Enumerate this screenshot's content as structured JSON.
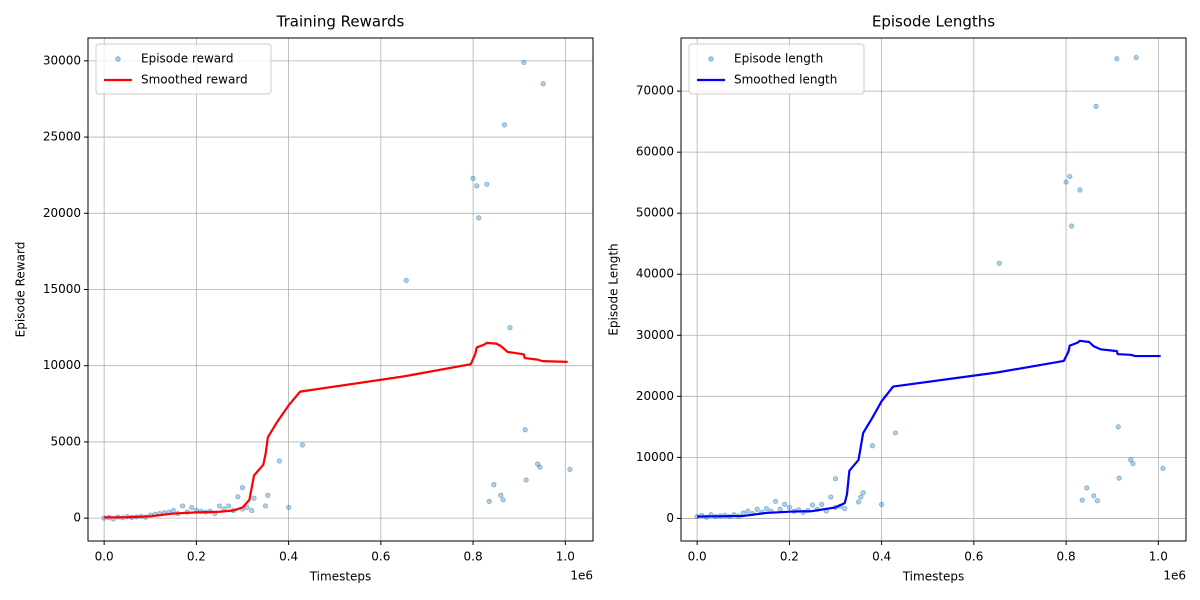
{
  "chart_data": [
    {
      "type": "scatter",
      "title": "Training Rewards",
      "x_label": "Timesteps",
      "y_label": "Episode Reward",
      "x_offset_label": "1e6",
      "xlim": [
        -0.035,
        1.06
      ],
      "ylim": [
        -1500,
        31500
      ],
      "xticks": [
        {
          "value": 0,
          "label": "0.0"
        },
        0.2,
        0.4,
        0.6,
        0.8,
        {
          "value": 1,
          "label": "1.0"
        }
      ],
      "yticks": [
        0,
        5000,
        10000,
        15000,
        20000,
        25000,
        30000
      ],
      "grid": true,
      "legend": "upper-left",
      "series": [
        {
          "name": "Episode reward",
          "type": "scatter",
          "color": "#1f77b4",
          "x": [
            0.0,
            0.01,
            0.02,
            0.03,
            0.04,
            0.05,
            0.06,
            0.07,
            0.08,
            0.09,
            0.1,
            0.11,
            0.12,
            0.13,
            0.14,
            0.15,
            0.16,
            0.17,
            0.18,
            0.19,
            0.2,
            0.21,
            0.22,
            0.23,
            0.24,
            0.25,
            0.26,
            0.27,
            0.28,
            0.3,
            0.31,
            0.32,
            0.29,
            0.3,
            0.325,
            0.35,
            0.355,
            0.38,
            0.4,
            0.43,
            0.655,
            0.8,
            0.808,
            0.812,
            0.83,
            0.835,
            0.845,
            0.86,
            0.865,
            0.868,
            0.88,
            0.91,
            0.913,
            0.915,
            0.94,
            0.945,
            0.952,
            1.01
          ],
          "values": [
            0,
            50,
            -50,
            80,
            20,
            100,
            50,
            80,
            120,
            60,
            200,
            250,
            300,
            350,
            400,
            500,
            300,
            800,
            400,
            700,
            500,
            450,
            400,
            450,
            300,
            800,
            600,
            800,
            500,
            600,
            700,
            500,
            1400,
            2000,
            1300,
            800,
            1500,
            3750,
            700,
            4800,
            15600,
            22300,
            21800,
            19700,
            21900,
            1100,
            2200,
            1500,
            1200,
            25800,
            12500,
            29900,
            5800,
            2500,
            3550,
            3350,
            28500,
            3200
          ]
        },
        {
          "name": "Smoothed reward",
          "type": "line",
          "color": "#ff0000",
          "x": [
            0,
            0.05,
            0.1,
            0.15,
            0.2,
            0.25,
            0.28,
            0.3,
            0.315,
            0.325,
            0.345,
            0.35,
            0.355,
            0.375,
            0.4,
            0.425,
            0.65,
            0.795,
            0.805,
            0.808,
            0.825,
            0.83,
            0.85,
            0.86,
            0.875,
            0.91,
            0.912,
            0.94,
            0.95,
            1.005
          ],
          "values": [
            50,
            60,
            120,
            300,
            380,
            420,
            500,
            700,
            1200,
            2800,
            3500,
            4200,
            5300,
            6300,
            7400,
            8300,
            9300,
            10100,
            10800,
            11200,
            11400,
            11500,
            11450,
            11300,
            10900,
            10750,
            10500,
            10400,
            10300,
            10250
          ]
        }
      ]
    },
    {
      "type": "scatter",
      "title": "Episode Lengths",
      "x_label": "Timesteps",
      "y_label": "Episode Length",
      "x_offset_label": "1e6",
      "xlim": [
        -0.035,
        1.06
      ],
      "ylim": [
        -3700,
        78700
      ],
      "xticks": [
        {
          "value": 0,
          "label": "0.0"
        },
        0.2,
        0.4,
        0.6,
        0.8,
        {
          "value": 1,
          "label": "1.0"
        }
      ],
      "yticks": [
        0,
        10000,
        20000,
        30000,
        40000,
        50000,
        60000,
        70000
      ],
      "grid": true,
      "legend": "upper-left",
      "series": [
        {
          "name": "Episode length",
          "type": "scatter",
          "color": "#1f77b4",
          "x": [
            0.0,
            0.01,
            0.02,
            0.03,
            0.04,
            0.05,
            0.06,
            0.07,
            0.08,
            0.09,
            0.1,
            0.11,
            0.12,
            0.13,
            0.14,
            0.15,
            0.16,
            0.17,
            0.18,
            0.19,
            0.2,
            0.21,
            0.22,
            0.23,
            0.24,
            0.25,
            0.26,
            0.27,
            0.28,
            0.3,
            0.31,
            0.32,
            0.29,
            0.3,
            0.35,
            0.355,
            0.36,
            0.38,
            0.4,
            0.43,
            0.655,
            0.8,
            0.808,
            0.812,
            0.83,
            0.835,
            0.845,
            0.86,
            0.865,
            0.868,
            0.91,
            0.913,
            0.915,
            0.94,
            0.945,
            0.952,
            1.01
          ],
          "values": [
            300,
            500,
            200,
            600,
            300,
            400,
            500,
            300,
            600,
            400,
            900,
            1200,
            800,
            1500,
            1000,
            1600,
            1200,
            2800,
            1500,
            2300,
            1800,
            1200,
            1400,
            1000,
            1300,
            2200,
            1500,
            2300,
            1200,
            1800,
            2000,
            1600,
            3500,
            6500,
            2700,
            3500,
            4200,
            11900,
            2300,
            14000,
            41800,
            55100,
            56000,
            47900,
            53800,
            3000,
            5000,
            3700,
            67500,
            2900,
            75300,
            15000,
            6600,
            9600,
            9000,
            75500,
            8200
          ]
        },
        {
          "name": "Smoothed length",
          "type": "line",
          "color": "#0000ff",
          "x": [
            0,
            0.1,
            0.15,
            0.2,
            0.25,
            0.3,
            0.32,
            0.325,
            0.33,
            0.35,
            0.36,
            0.38,
            0.4,
            0.425,
            0.65,
            0.795,
            0.805,
            0.808,
            0.825,
            0.83,
            0.85,
            0.86,
            0.875,
            0.91,
            0.912,
            0.94,
            0.95,
            1.005
          ],
          "values": [
            300,
            400,
            900,
            1100,
            1200,
            1800,
            2500,
            4000,
            7800,
            9600,
            14000,
            16500,
            19200,
            21600,
            23900,
            25800,
            27300,
            28300,
            28800,
            29100,
            28900,
            28200,
            27700,
            27400,
            26900,
            26800,
            26600,
            26600
          ]
        }
      ]
    }
  ]
}
